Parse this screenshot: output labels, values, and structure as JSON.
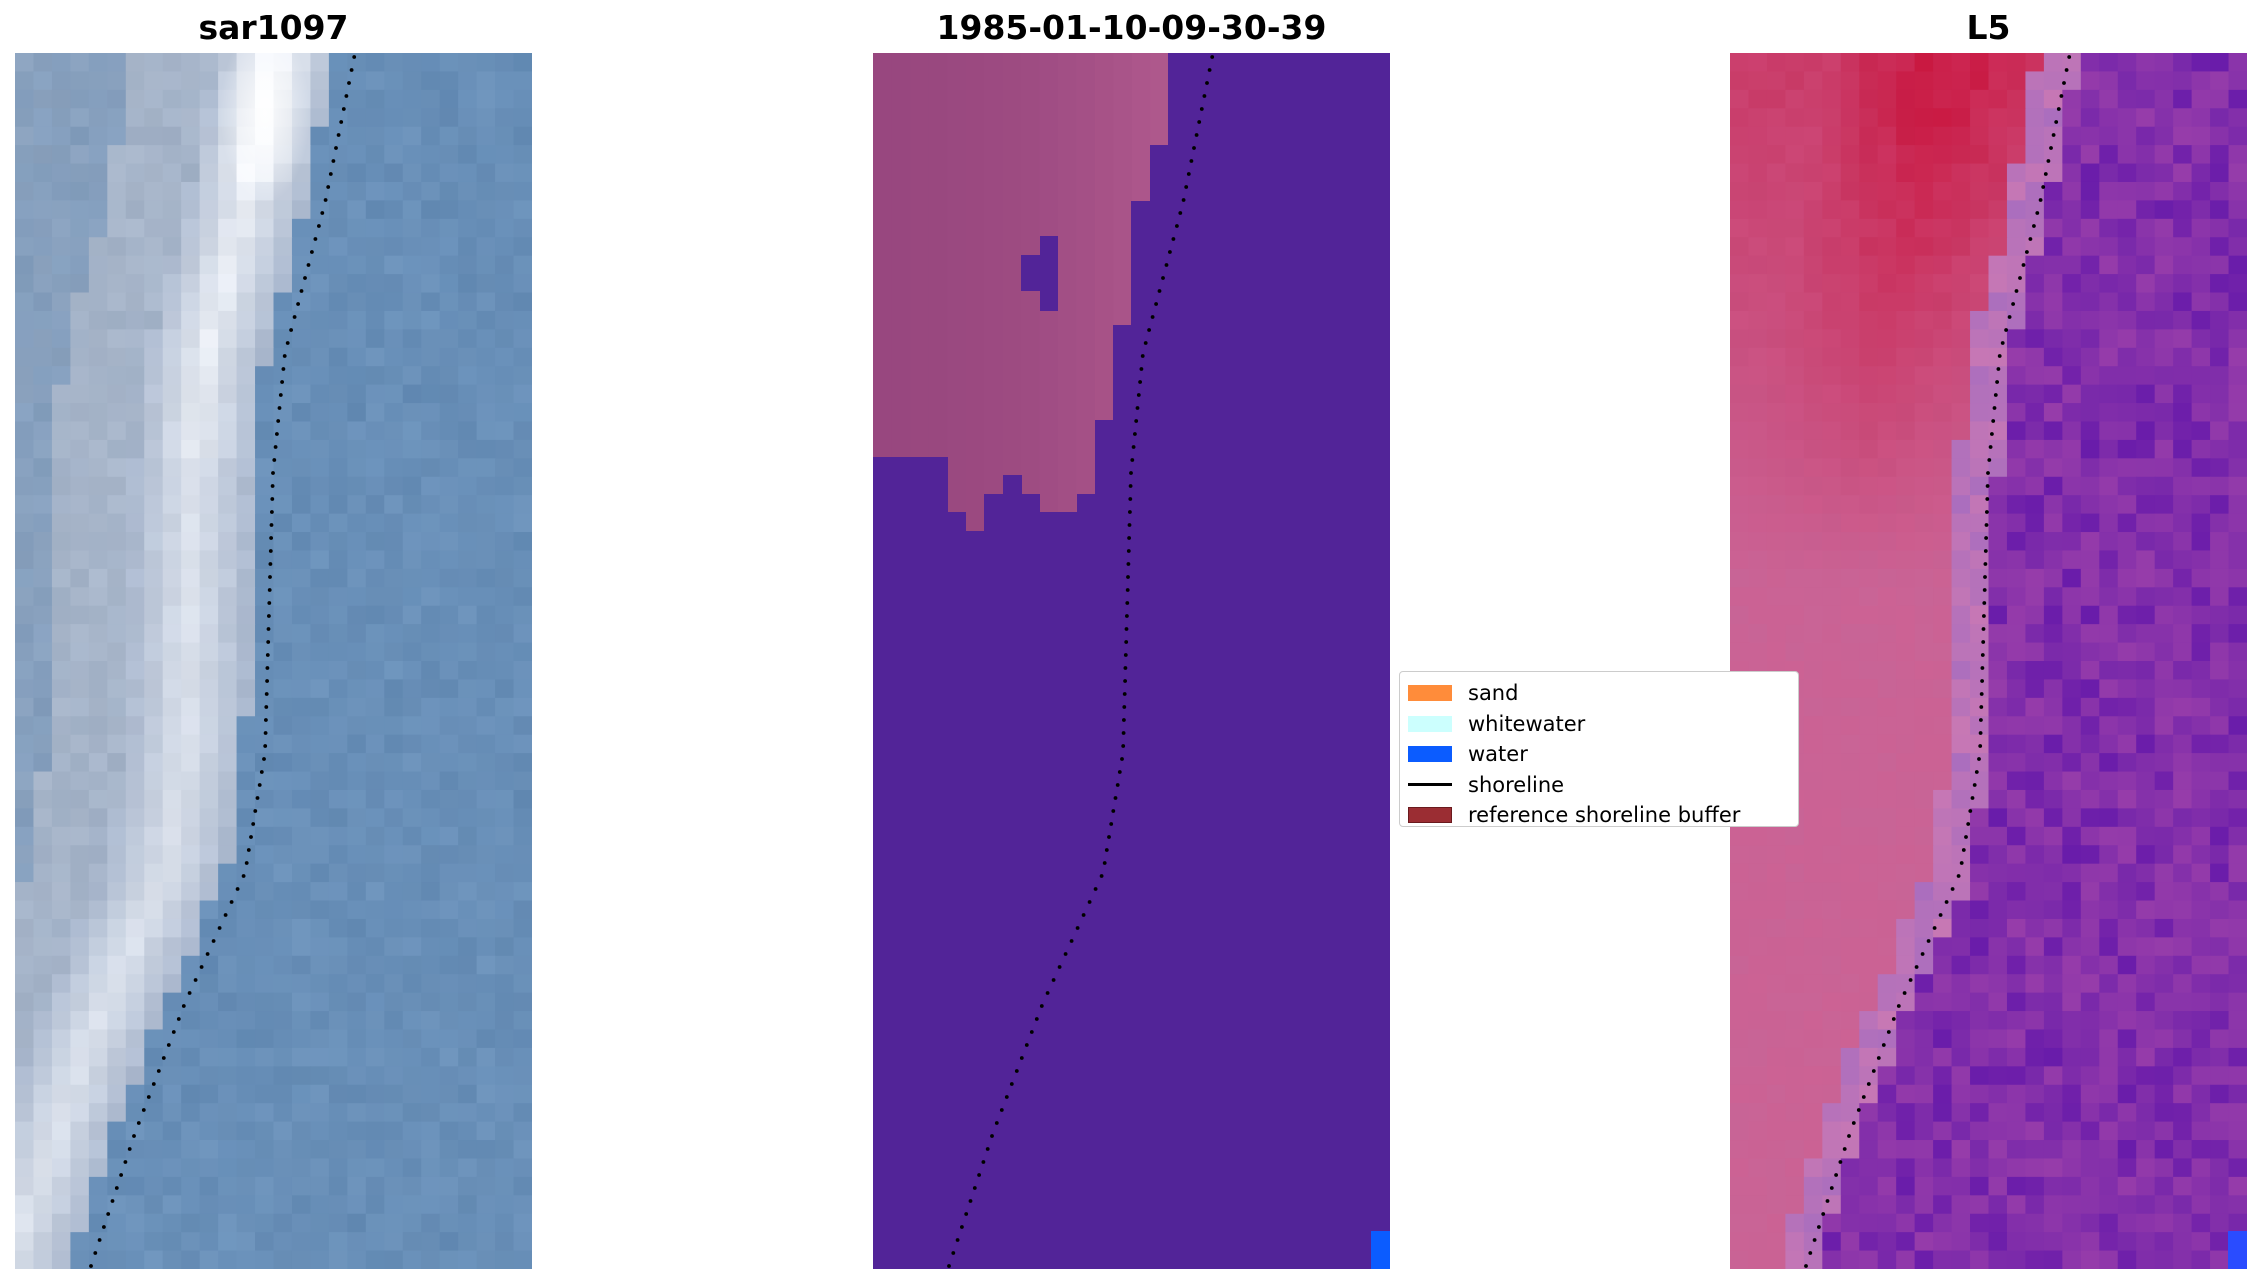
{
  "panels": [
    {
      "title": "sar1097",
      "colors": {
        "base": "#7a9cc4",
        "highlight": "#f4f8ff",
        "accent": "#5e8ab8"
      }
    },
    {
      "title": "1985-01-10-09-30-39",
      "colors": {
        "sand_region": "#a0487e",
        "water_region": "#522498",
        "water_pixel": "#0b5cff"
      }
    },
    {
      "title": "L5",
      "colors": {
        "red": "#c8103c",
        "pink": "#cc6898",
        "purple": "#6a1ca8"
      }
    }
  ],
  "legend": {
    "items": [
      {
        "label": "sand",
        "color": "#ff8c3a",
        "kind": "patch"
      },
      {
        "label": "whitewater",
        "color": "#ccfffe",
        "kind": "patch"
      },
      {
        "label": "water",
        "color": "#0b5cff",
        "kind": "patch"
      },
      {
        "label": "shoreline",
        "color": "#000000",
        "kind": "line"
      },
      {
        "label": "reference shoreline buffer",
        "color": "#9b2d33",
        "kind": "patch"
      }
    ]
  }
}
